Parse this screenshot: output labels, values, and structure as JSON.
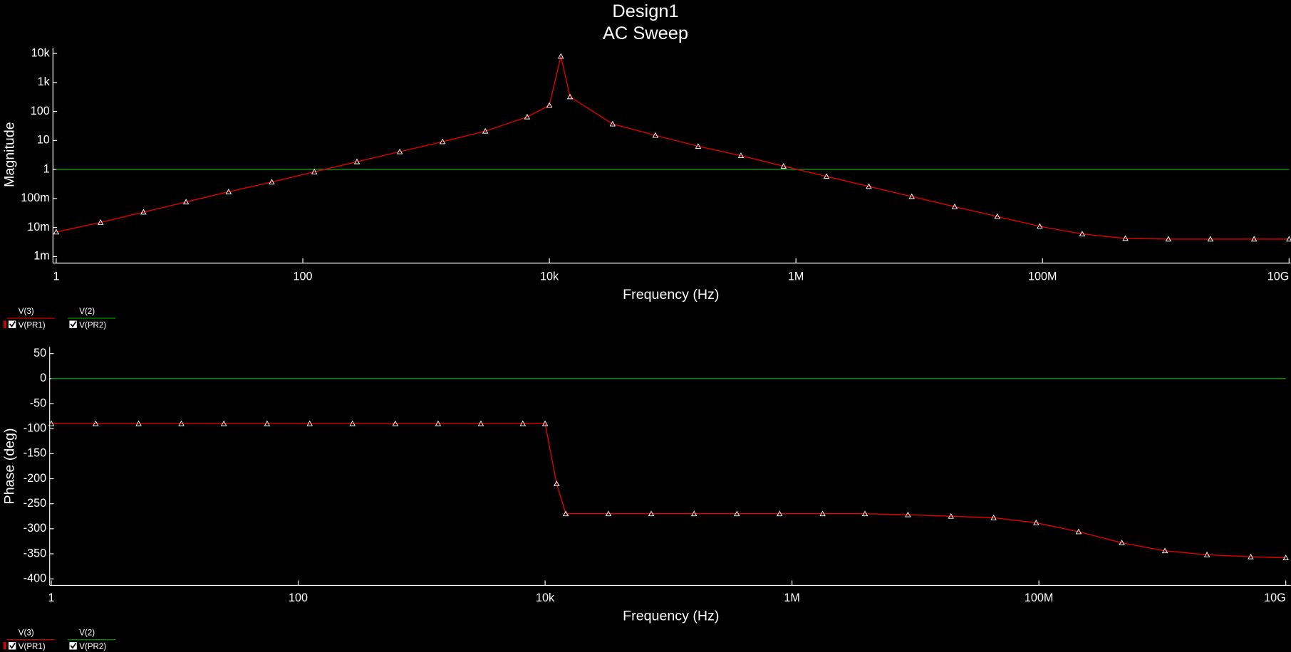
{
  "chart_data": [
    {
      "type": "line",
      "title": "Design1",
      "subtitle": "AC Sweep",
      "xlabel": "Frequency (Hz)",
      "ylabel": "Magnitude",
      "xscale": "log",
      "yscale": "log",
      "xlim": [
        1,
        10000000000
      ],
      "ylim": [
        0.001,
        10000
      ],
      "xticks": [
        1,
        100,
        {
          "value": 10000,
          "label": "10k"
        },
        {
          "value": 1000000,
          "label": "1M"
        },
        {
          "value": 100000000,
          "label": "100M"
        },
        {
          "value": 10000000000,
          "label": "10G"
        }
      ],
      "yticks": [
        {
          "value": 0.001,
          "label": "1m"
        },
        {
          "value": 0.01,
          "label": "10m"
        },
        {
          "value": 0.1,
          "label": "100m"
        },
        1,
        10,
        100,
        {
          "value": 1000,
          "label": "1k"
        },
        {
          "value": 10000,
          "label": "10k"
        }
      ],
      "x": [
        1,
        2.29,
        5.1,
        11.3,
        25,
        56,
        124,
        275,
        612,
        1360,
        3020,
        6600,
        10000,
        12400,
        14700,
        32600,
        72400,
        161000,
        358000,
        794000,
        1770000,
        3900000,
        8700000,
        19400000,
        43000000,
        95000000,
        210000000,
        470000000,
        1050000000,
        2300000000,
        5200000000,
        10000000000
      ],
      "series": [
        {
          "name": "V(3)",
          "probe": "V(PR1)",
          "color": "#e00000",
          "marker": "triangle",
          "values": [
            0.007,
            0.015,
            0.034,
            0.076,
            0.17,
            0.37,
            0.83,
            1.85,
            4.1,
            9.1,
            21,
            65,
            163,
            8000,
            320,
            37,
            15,
            6.3,
            3,
            1.3,
            0.58,
            0.26,
            0.117,
            0.052,
            0.024,
            0.011,
            0.006,
            0.0042,
            0.004,
            0.004,
            0.004,
            0.004
          ]
        },
        {
          "name": "V(2)",
          "probe": "V(PR2)",
          "color": "#00a000",
          "values": [
            1,
            1,
            1,
            1,
            1,
            1,
            1,
            1,
            1,
            1,
            1,
            1,
            1,
            1,
            1,
            1,
            1,
            1,
            1,
            1,
            1,
            1,
            1,
            1,
            1,
            1,
            1,
            1,
            1,
            1,
            1,
            1
          ]
        }
      ]
    },
    {
      "type": "line",
      "xlabel": "Frequency (Hz)",
      "ylabel": "Phase (deg)",
      "xscale": "log",
      "xlim": [
        1,
        10000000000
      ],
      "ylim": [
        -400,
        50
      ],
      "xticks": [
        1,
        100,
        {
          "value": 10000,
          "label": "10k"
        },
        {
          "value": 1000000,
          "label": "1M"
        },
        {
          "value": 100000000,
          "label": "100M"
        },
        {
          "value": 10000000000,
          "label": "10G"
        }
      ],
      "yticks": [
        50,
        0,
        -50,
        -100,
        -150,
        -200,
        -250,
        -300,
        -350,
        -400
      ],
      "x": [
        1,
        2.29,
        5.1,
        11.3,
        25,
        56,
        124,
        275,
        612,
        1360,
        3020,
        6600,
        10000,
        12400,
        14700,
        32600,
        72400,
        161000,
        358000,
        794000,
        1770000,
        3900000,
        8700000,
        19400000,
        43000000,
        95000000,
        210000000,
        470000000,
        1050000000,
        2300000000,
        5200000000,
        10000000000
      ],
      "series": [
        {
          "name": "V(3)",
          "probe": "V(PR1)",
          "color": "#e00000",
          "marker": "triangle",
          "values": [
            -90,
            -90,
            -90,
            -90,
            -90,
            -90,
            -90,
            -90,
            -90,
            -90,
            -90,
            -90,
            -90,
            -210,
            -270,
            -270,
            -270,
            -270,
            -270,
            -270,
            -270,
            -270,
            -272,
            -275,
            -278,
            -288,
            -306,
            -328,
            -344,
            -352,
            -356,
            -358
          ]
        },
        {
          "name": "V(2)",
          "probe": "V(PR2)",
          "color": "#00a000",
          "values": [
            0,
            0,
            0,
            0,
            0,
            0,
            0,
            0,
            0,
            0,
            0,
            0,
            0,
            0,
            0,
            0,
            0,
            0,
            0,
            0,
            0,
            0,
            0,
            0,
            0,
            0,
            0,
            0,
            0,
            0,
            0,
            0
          ]
        }
      ]
    }
  ]
}
